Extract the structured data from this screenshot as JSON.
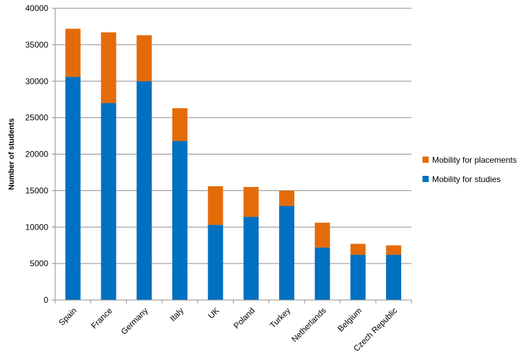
{
  "chart_data": {
    "type": "bar",
    "stacked": true,
    "title": "",
    "xlabel": "",
    "ylabel": "Number of students",
    "ylim": [
      0,
      40000
    ],
    "ytick_step": 5000,
    "yticks": [
      "0",
      "5000",
      "10000",
      "15000",
      "20000",
      "25000",
      "30000",
      "35000",
      "40000"
    ],
    "grid": "horizontal",
    "legend_position": "right",
    "categories": [
      "Spain",
      "France",
      "Germany",
      "Italy",
      "UK",
      "Poland",
      "Turkey",
      "Netherlands",
      "Belgium",
      "Czech Republic"
    ],
    "series": [
      {
        "name": "Mobility for studies",
        "color": "#0070C0",
        "values": [
          30600,
          27000,
          30000,
          21800,
          10300,
          11400,
          12900,
          7200,
          6200,
          6200
        ]
      },
      {
        "name": "Mobility for placements",
        "color": "#E36C09",
        "values": [
          6600,
          9700,
          6300,
          4500,
          5300,
          4100,
          2100,
          3400,
          1500,
          1300
        ]
      }
    ],
    "legend_order": [
      "Mobility for placements",
      "Mobility for studies"
    ]
  }
}
